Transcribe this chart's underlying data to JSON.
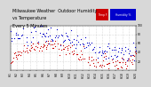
{
  "title_line1": "Milwaukee Weather  Outdoor Humidity",
  "title_line2": "vs Temperature",
  "title_line3": "Every 5 Minutes",
  "humidity_color": "#0000cc",
  "temperature_color": "#cc0000",
  "background_color": "#d8d8d8",
  "plot_bg_color": "#ffffff",
  "grid_color": "#bbbbbb",
  "ylim": [
    0,
    100
  ],
  "y_ticks": [
    20,
    40,
    60,
    80,
    100
  ],
  "title_fontsize": 3.5,
  "tick_fontsize": 2.2,
  "legend_red_label": "Temp F",
  "legend_blue_label": "Humidity %"
}
